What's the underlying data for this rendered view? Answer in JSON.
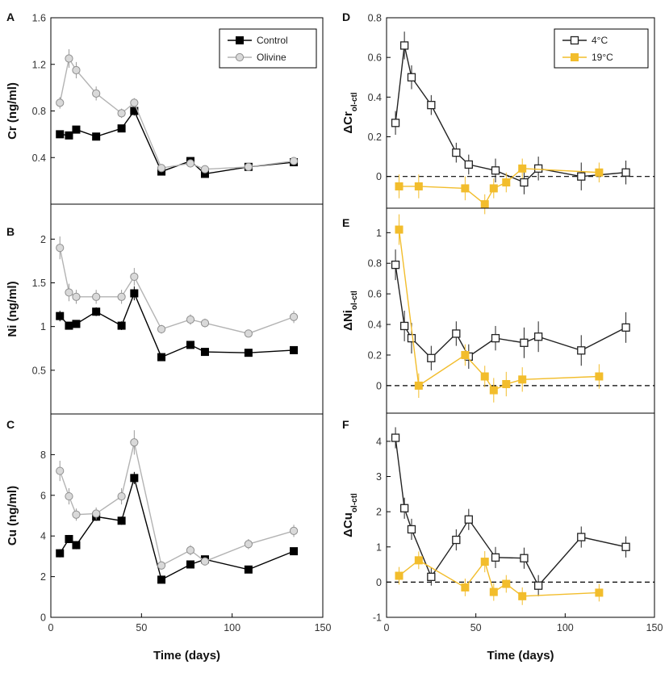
{
  "colors": {
    "control": "#000000",
    "olivine": "#b3b3b3",
    "c4": "#222222",
    "c19": "#f2bd2c",
    "axis": "#000000"
  },
  "chart_data": [
    {
      "id": "A",
      "letter": "A",
      "type": "line",
      "ylabel_parts": [
        {
          "t": "Cr (ng/ml)"
        }
      ],
      "xlim": [
        0,
        150
      ],
      "ylim": [
        0,
        1.6
      ],
      "yticks": [
        0.4,
        0.8,
        1.2,
        1.6
      ],
      "ytick_labels": [
        "0.4",
        "0.8",
        "1.2",
        "1.6"
      ],
      "xticks": [],
      "xtick_labels": [],
      "xlabel": "",
      "zero_line": false,
      "legend": {
        "position": "top-right",
        "entries": [
          "Control",
          "Olivine"
        ]
      },
      "series": [
        {
          "name": "Control",
          "color_key": "control",
          "marker": "square-filled",
          "x": [
            5,
            10,
            14,
            25,
            39,
            46,
            61,
            77,
            85,
            109,
            134
          ],
          "y": [
            0.6,
            0.59,
            0.64,
            0.58,
            0.65,
            0.8,
            0.28,
            0.37,
            0.26,
            0.32,
            0.36
          ],
          "err": [
            0,
            0.02,
            0.03,
            0.02,
            0.02,
            0.04,
            0.02,
            0.02,
            0.02,
            0.01,
            0.01
          ]
        },
        {
          "name": "Olivine",
          "color_key": "olivine",
          "marker": "circle-gray",
          "x": [
            5,
            10,
            14,
            25,
            39,
            46,
            61,
            77,
            85,
            109,
            134
          ],
          "y": [
            0.87,
            1.25,
            1.15,
            0.95,
            0.78,
            0.87,
            0.31,
            0.35,
            0.3,
            0.32,
            0.37
          ],
          "err": [
            0.05,
            0.08,
            0.07,
            0.06,
            0.04,
            0.04,
            0.02,
            0.02,
            0.02,
            0.01,
            0.01
          ]
        }
      ]
    },
    {
      "id": "B",
      "letter": "B",
      "type": "line",
      "ylabel_parts": [
        {
          "t": "Ni (ng/ml)"
        }
      ],
      "xlim": [
        0,
        150
      ],
      "ylim": [
        0,
        2.4
      ],
      "yticks": [
        0.5,
        1,
        1.5,
        2
      ],
      "ytick_labels": [
        "0.5",
        "1",
        "1.5",
        "2"
      ],
      "xticks": [],
      "xtick_labels": [],
      "xlabel": "",
      "zero_line": false,
      "legend": null,
      "series": [
        {
          "name": "Control",
          "color_key": "control",
          "marker": "square-filled",
          "x": [
            5,
            10,
            14,
            25,
            39,
            46,
            61,
            77,
            85,
            109,
            134
          ],
          "y": [
            1.12,
            1.01,
            1.03,
            1.17,
            1.01,
            1.38,
            0.65,
            0.79,
            0.71,
            0.7,
            0.73
          ],
          "err": [
            0.06,
            0.04,
            0.04,
            0.05,
            0.05,
            0.08,
            0.03,
            0.03,
            0.03,
            0.02,
            0.02
          ]
        },
        {
          "name": "Olivine",
          "color_key": "olivine",
          "marker": "circle-gray",
          "x": [
            5,
            10,
            14,
            25,
            39,
            46,
            61,
            77,
            85,
            109,
            134
          ],
          "y": [
            1.9,
            1.39,
            1.34,
            1.34,
            1.34,
            1.57,
            0.97,
            1.08,
            1.04,
            0.92,
            1.11
          ],
          "err": [
            0.13,
            0.1,
            0.08,
            0.08,
            0.08,
            0.1,
            0.05,
            0.06,
            0.05,
            0.04,
            0.07
          ]
        }
      ]
    },
    {
      "id": "C",
      "letter": "C",
      "type": "line",
      "ylabel_parts": [
        {
          "t": "Cu (ng/ml)"
        }
      ],
      "xlim": [
        0,
        150
      ],
      "ylim": [
        0,
        10
      ],
      "yticks": [
        0,
        2,
        4,
        6,
        8
      ],
      "ytick_labels": [
        "0",
        "2",
        "4",
        "6",
        "8"
      ],
      "xticks": [
        0,
        50,
        100,
        150
      ],
      "xtick_labels": [
        "0",
        "50",
        "100",
        "150"
      ],
      "xlabel": "Time (days)",
      "zero_line": false,
      "legend": null,
      "series": [
        {
          "name": "Control",
          "color_key": "control",
          "marker": "square-filled",
          "x": [
            5,
            10,
            14,
            25,
            39,
            46,
            61,
            77,
            85,
            109,
            134
          ],
          "y": [
            3.15,
            3.85,
            3.55,
            4.95,
            4.75,
            6.85,
            1.85,
            2.6,
            2.85,
            2.35,
            3.25
          ],
          "err": [
            0.2,
            0.2,
            0.2,
            0.2,
            0.2,
            0.3,
            0.15,
            0.15,
            0.15,
            0.1,
            0.1
          ]
        },
        {
          "name": "Olivine",
          "color_key": "olivine",
          "marker": "circle-gray",
          "x": [
            5,
            10,
            14,
            25,
            39,
            46,
            61,
            77,
            85,
            109,
            134
          ],
          "y": [
            7.2,
            5.95,
            5.05,
            5.1,
            5.95,
            8.6,
            2.55,
            3.3,
            2.75,
            3.6,
            4.25
          ],
          "err": [
            0.5,
            0.4,
            0.3,
            0.3,
            0.4,
            0.6,
            0.2,
            0.25,
            0.2,
            0.25,
            0.3
          ]
        }
      ]
    },
    {
      "id": "D",
      "letter": "D",
      "type": "line",
      "ylabel_parts": [
        {
          "t": "ΔCr"
        },
        {
          "t": "ol-ctl",
          "sub": true
        }
      ],
      "xlim": [
        0,
        150
      ],
      "ylim": [
        -0.16,
        0.8
      ],
      "yticks": [
        0,
        0.2,
        0.4,
        0.6,
        0.8
      ],
      "ytick_labels": [
        "0",
        "0.2",
        "0.4",
        "0.6",
        "0.8"
      ],
      "xticks": [],
      "xtick_labels": [],
      "xlabel": "",
      "zero_line": true,
      "legend": {
        "position": "top-right",
        "entries": [
          "4°C",
          "19°C"
        ]
      },
      "series": [
        {
          "name": "4°C",
          "color_key": "c4",
          "marker": "square-open",
          "x": [
            5,
            10,
            14,
            25,
            39,
            46,
            61,
            77,
            85,
            109,
            134
          ],
          "y": [
            0.27,
            0.66,
            0.5,
            0.36,
            0.12,
            0.06,
            0.03,
            -0.03,
            0.04,
            0.0,
            0.02
          ],
          "err": [
            0.06,
            0.07,
            0.06,
            0.05,
            0.05,
            0.05,
            0.06,
            0.06,
            0.06,
            0.07,
            0.06
          ]
        },
        {
          "name": "19°C",
          "color_key": "c19",
          "marker": "square-filled",
          "x": [
            7,
            18,
            44,
            55,
            60,
            67,
            76,
            119
          ],
          "y": [
            -0.05,
            -0.05,
            -0.06,
            -0.14,
            -0.06,
            -0.03,
            0.04,
            0.02
          ],
          "err": [
            0.06,
            0.06,
            0.06,
            0.05,
            0.05,
            0.05,
            0.05,
            0.05
          ]
        }
      ]
    },
    {
      "id": "E",
      "letter": "E",
      "type": "line",
      "ylabel_parts": [
        {
          "t": "ΔNi"
        },
        {
          "t": "ol-ctl",
          "sub": true
        }
      ],
      "xlim": [
        0,
        150
      ],
      "ylim": [
        -0.18,
        1.16
      ],
      "yticks": [
        0,
        0.2,
        0.4,
        0.6,
        0.8,
        1
      ],
      "ytick_labels": [
        "0",
        "0.2",
        "0.4",
        "0.6",
        "0.8",
        "1"
      ],
      "xticks": [],
      "xtick_labels": [],
      "xlabel": "",
      "zero_line": true,
      "legend": null,
      "series": [
        {
          "name": "4°C",
          "color_key": "c4",
          "marker": "square-open",
          "x": [
            5,
            10,
            14,
            25,
            39,
            46,
            61,
            77,
            85,
            109,
            134
          ],
          "y": [
            0.79,
            0.39,
            0.31,
            0.18,
            0.34,
            0.19,
            0.31,
            0.28,
            0.32,
            0.23,
            0.38
          ],
          "err": [
            0.1,
            0.1,
            0.1,
            0.08,
            0.08,
            0.08,
            0.08,
            0.1,
            0.1,
            0.1,
            0.1
          ]
        },
        {
          "name": "19°C",
          "color_key": "c19",
          "marker": "square-filled",
          "x": [
            7,
            18,
            44,
            55,
            60,
            67,
            76,
            119
          ],
          "y": [
            1.02,
            0.0,
            0.2,
            0.06,
            -0.03,
            0.01,
            0.04,
            0.06
          ],
          "err": [
            0.1,
            0.08,
            0.07,
            0.07,
            0.08,
            0.08,
            0.08,
            0.08
          ]
        }
      ]
    },
    {
      "id": "F",
      "letter": "F",
      "type": "line",
      "ylabel_parts": [
        {
          "t": "ΔCu"
        },
        {
          "t": "ol-ctl",
          "sub": true
        }
      ],
      "xlim": [
        0,
        150
      ],
      "ylim": [
        -1,
        4.8
      ],
      "yticks": [
        -1,
        0,
        1,
        2,
        3,
        4
      ],
      "ytick_labels": [
        "-1",
        "0",
        "1",
        "2",
        "3",
        "4"
      ],
      "xticks": [
        0,
        50,
        100,
        150
      ],
      "xtick_labels": [
        "0",
        "50",
        "100",
        "150"
      ],
      "xlabel": "Time (days)",
      "zero_line": true,
      "legend": null,
      "series": [
        {
          "name": "4°C",
          "color_key": "c4",
          "marker": "square-open",
          "x": [
            5,
            10,
            14,
            25,
            39,
            46,
            61,
            77,
            85,
            109,
            134
          ],
          "y": [
            4.1,
            2.1,
            1.5,
            0.15,
            1.2,
            1.78,
            0.7,
            0.68,
            -0.1,
            1.28,
            1.0
          ],
          "err": [
            0.3,
            0.3,
            0.3,
            0.25,
            0.3,
            0.3,
            0.3,
            0.3,
            0.3,
            0.3,
            0.3
          ]
        },
        {
          "name": "19°C",
          "color_key": "c19",
          "marker": "square-filled",
          "x": [
            7,
            18,
            44,
            55,
            60,
            67,
            76,
            119
          ],
          "y": [
            0.18,
            0.62,
            -0.15,
            0.58,
            -0.28,
            -0.05,
            -0.4,
            -0.3
          ],
          "err": [
            0.25,
            0.25,
            0.25,
            0.3,
            0.25,
            0.25,
            0.25,
            0.25
          ]
        }
      ]
    }
  ]
}
